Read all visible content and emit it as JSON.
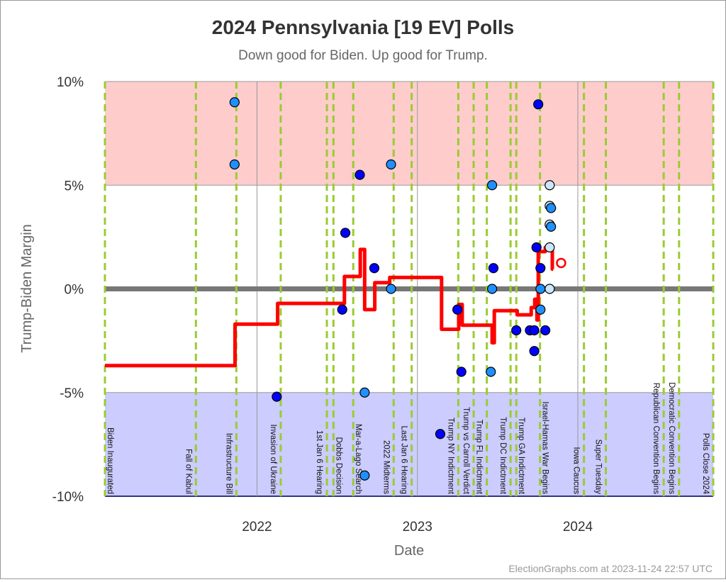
{
  "chart_data": {
    "type": "scatter",
    "title": "2024 Pennsylvania [19 EV] Polls",
    "subtitle": "Down good for Biden. Up good for Trump.",
    "xlabel": "Date",
    "ylabel": "Trump-Biden Margin",
    "footer": "ElectionGraphs.com at 2023-11-24 22:57 UTC",
    "xlim": [
      "2021-01-20",
      "2024-11-05"
    ],
    "ylim": [
      -10,
      10
    ],
    "x_ticks": [
      {
        "date": "2022-01-01",
        "label": "2022"
      },
      {
        "date": "2023-01-01",
        "label": "2023"
      },
      {
        "date": "2024-01-01",
        "label": "2024"
      }
    ],
    "y_ticks": [
      {
        "value": 10,
        "label": "10%"
      },
      {
        "value": 5,
        "label": "5%"
      },
      {
        "value": 0,
        "label": "0%"
      },
      {
        "value": -5,
        "label": "-5%"
      },
      {
        "value": -10,
        "label": "-10%"
      }
    ],
    "bands": [
      {
        "from": 5,
        "to": 10,
        "color": "#ffcccc"
      },
      {
        "from": -10,
        "to": -5,
        "color": "#ccccff"
      }
    ],
    "colors": {
      "average": "#ff0000",
      "event_line": "#99cc33",
      "zero_line": "#777777",
      "poll_old": "#0000ff",
      "poll_mid": "#1e90ff",
      "poll_new": "#cce6fa"
    },
    "events": [
      {
        "date": "2021-01-20",
        "label": "Biden Inaugurated"
      },
      {
        "date": "2021-08-15",
        "label": "Fall of Kabul"
      },
      {
        "date": "2021-11-15",
        "label": "Infrastructure Bill"
      },
      {
        "date": "2022-02-24",
        "label": "Invasion of Ukraine"
      },
      {
        "date": "2022-06-09",
        "label": "1st Jan 6 Hearing"
      },
      {
        "date": "2022-06-24",
        "label": "Dobbs Decision"
      },
      {
        "date": "2022-08-08",
        "label": "Mar-a-Lago Search"
      },
      {
        "date": "2022-11-08",
        "label": "2022 Midterms"
      },
      {
        "date": "2022-12-19",
        "label": "Last Jan 6 Hearing"
      },
      {
        "date": "2023-04-04",
        "label": "Trump NY Indictment"
      },
      {
        "date": "2023-05-09",
        "label": "Trump vs Carroll Verdict"
      },
      {
        "date": "2023-06-08",
        "label": "Trump FL Indictment"
      },
      {
        "date": "2023-08-01",
        "label": "Trump DC Indictment"
      },
      {
        "date": "2023-08-14",
        "label": "Trump GA Indictment"
      },
      {
        "date": "2023-10-07",
        "label": "Israel-Hamas War Begins"
      },
      {
        "date": "2024-01-15",
        "label": "Iowa Caucus"
      },
      {
        "date": "2024-03-05",
        "label": "Super Tuesday"
      },
      {
        "date": "2024-07-15",
        "label": "Republican Convention Begins"
      },
      {
        "date": "2024-08-19",
        "label": "Democratic Convention Begins"
      },
      {
        "date": "2024-11-05",
        "label": "Polls Close 2024"
      }
    ],
    "polls": [
      {
        "date": "2021-11-11",
        "margin": 9.0,
        "age": "mid"
      },
      {
        "date": "2021-11-11",
        "margin": 6.0,
        "age": "mid"
      },
      {
        "date": "2022-02-15",
        "margin": -5.2,
        "age": "old"
      },
      {
        "date": "2022-07-21",
        "margin": 2.7,
        "age": "old"
      },
      {
        "date": "2022-07-14",
        "margin": -1.0,
        "age": "old"
      },
      {
        "date": "2022-08-23",
        "margin": 5.5,
        "age": "old"
      },
      {
        "date": "2022-09-25",
        "margin": 1.0,
        "age": "old"
      },
      {
        "date": "2022-09-03",
        "margin": -5.0,
        "age": "mid"
      },
      {
        "date": "2022-09-03",
        "margin": -9.0,
        "age": "mid"
      },
      {
        "date": "2022-11-02",
        "margin": 6.0,
        "age": "mid"
      },
      {
        "date": "2022-11-02",
        "margin": 0.0,
        "age": "mid"
      },
      {
        "date": "2023-02-22",
        "margin": -7.0,
        "age": "old"
      },
      {
        "date": "2023-04-02",
        "margin": -1.0,
        "age": "old"
      },
      {
        "date": "2023-04-11",
        "margin": -4.0,
        "age": "old"
      },
      {
        "date": "2023-06-20",
        "margin": 5.0,
        "age": "mid"
      },
      {
        "date": "2023-06-23",
        "margin": 1.0,
        "age": "old"
      },
      {
        "date": "2023-06-20",
        "margin": 0.0,
        "age": "mid"
      },
      {
        "date": "2023-06-17",
        "margin": -4.0,
        "age": "mid"
      },
      {
        "date": "2023-08-14",
        "margin": -2.0,
        "age": "old"
      },
      {
        "date": "2023-09-14",
        "margin": -2.0,
        "age": "old"
      },
      {
        "date": "2023-09-24",
        "margin": -2.0,
        "age": "old"
      },
      {
        "date": "2023-09-24",
        "margin": -3.0,
        "age": "old"
      },
      {
        "date": "2023-09-29",
        "margin": 2.0,
        "age": "old"
      },
      {
        "date": "2023-10-03",
        "margin": 8.9,
        "age": "old"
      },
      {
        "date": "2023-10-08",
        "margin": 1.0,
        "age": "old"
      },
      {
        "date": "2023-10-08",
        "margin": 0.0,
        "age": "mid"
      },
      {
        "date": "2023-10-08",
        "margin": -1.0,
        "age": "mid"
      },
      {
        "date": "2023-10-19",
        "margin": -2.0,
        "age": "old"
      },
      {
        "date": "2023-10-29",
        "margin": 5.0,
        "age": "new"
      },
      {
        "date": "2023-10-29",
        "margin": 4.0,
        "age": "new"
      },
      {
        "date": "2023-11-01",
        "margin": 3.9,
        "age": "mid"
      },
      {
        "date": "2023-10-29",
        "margin": 3.1,
        "age": "new"
      },
      {
        "date": "2023-11-01",
        "margin": 3.0,
        "age": "mid"
      },
      {
        "date": "2023-10-29",
        "margin": 2.0,
        "age": "new"
      },
      {
        "date": "2023-10-29",
        "margin": 0.0,
        "age": "new"
      }
    ],
    "average": [
      {
        "date": "2021-01-20",
        "margin": -3.7
      },
      {
        "date": "2021-11-12",
        "margin": -1.7
      },
      {
        "date": "2022-02-17",
        "margin": -0.7
      },
      {
        "date": "2022-07-19",
        "margin": 0.6
      },
      {
        "date": "2022-08-24",
        "margin": 1.9
      },
      {
        "date": "2022-09-03",
        "margin": -1.0
      },
      {
        "date": "2022-09-26",
        "margin": 0.3
      },
      {
        "date": "2022-10-30",
        "margin": 0.55
      },
      {
        "date": "2023-02-25",
        "margin": -1.95
      },
      {
        "date": "2023-04-05",
        "margin": -0.75
      },
      {
        "date": "2023-04-13",
        "margin": -1.75
      },
      {
        "date": "2023-06-20",
        "margin": -2.6
      },
      {
        "date": "2023-06-25",
        "margin": -1.05
      },
      {
        "date": "2023-08-16",
        "margin": -1.25
      },
      {
        "date": "2023-09-17",
        "margin": -0.9
      },
      {
        "date": "2023-09-25",
        "margin": -0.5
      },
      {
        "date": "2023-09-30",
        "margin": -1.5
      },
      {
        "date": "2023-10-03",
        "margin": 1.8
      },
      {
        "date": "2023-10-19",
        "margin": 2.0
      },
      {
        "date": "2023-11-04",
        "margin": 0.95
      },
      {
        "date": "2023-11-06",
        "margin": 0.95
      }
    ],
    "current": {
      "date": "2023-11-24",
      "margin": 1.25
    }
  }
}
